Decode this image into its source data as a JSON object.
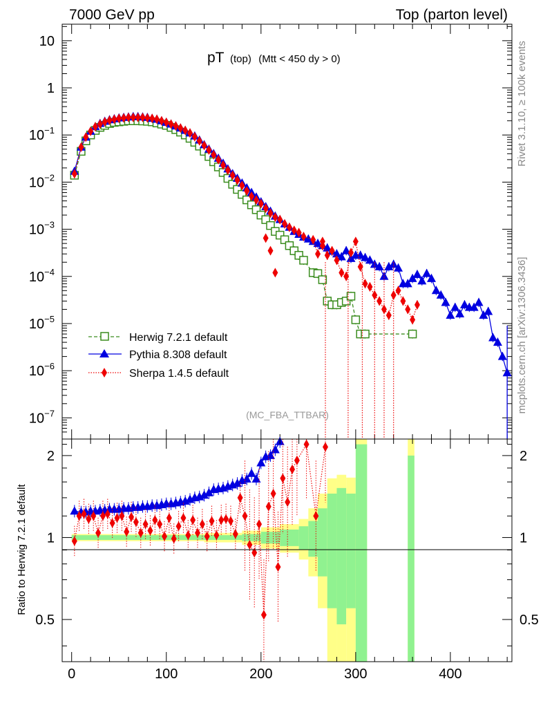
{
  "header": {
    "left": "7000 GeV pp",
    "right": "Top (parton level)"
  },
  "side": {
    "rivet": "Rivet 3.1.10, ≥ 100k events",
    "mcplots": "mcplots.cern.ch [arXiv:1306.3436]"
  },
  "analysis_label": "(MC_FBA_TTBAR)",
  "colors": {
    "herwig": "#3a8c1e",
    "pythia": "#0000e0",
    "sherpa": "#ee0000",
    "band_yellow": "#ffff88",
    "band_green": "#90f290"
  },
  "chart_data": [
    {
      "type": "line",
      "panel": "main",
      "title_main": "pT",
      "title_sub": "(top)",
      "title_cut": "(Mtt < 450 dy > 0)",
      "xlim": [
        -10,
        465
      ],
      "ylim_log10": [
        -7.45,
        1.35
      ],
      "ylog": true,
      "y_ticks": [
        {
          "label_base": "10",
          "label_exp": "",
          "value": 10
        },
        {
          "label_base": "1",
          "label_exp": "",
          "value": 1
        },
        {
          "label_base": "10",
          "label_exp": "−1",
          "value": 0.1
        },
        {
          "label_base": "10",
          "label_exp": "−2",
          "value": 0.01
        },
        {
          "label_base": "10",
          "label_exp": "−3",
          "value": 0.001
        },
        {
          "label_base": "10",
          "label_exp": "−4",
          "value": 0.0001
        },
        {
          "label_base": "10",
          "label_exp": "−5",
          "value": 1e-05
        },
        {
          "label_base": "10",
          "label_exp": "−6",
          "value": 1e-06
        },
        {
          "label_base": "10",
          "label_exp": "−7",
          "value": 1e-07
        }
      ],
      "legend_position": "bottom-left",
      "series": [
        {
          "name": "Herwig 7.2.1 default",
          "key": "herwig",
          "marker": "open-square",
          "linestyle": "dashed",
          "x": [
            3,
            10,
            15,
            20,
            25,
            30,
            35,
            40,
            45,
            50,
            55,
            60,
            65,
            70,
            75,
            80,
            85,
            90,
            95,
            100,
            105,
            110,
            115,
            120,
            125,
            130,
            135,
            140,
            145,
            150,
            155,
            160,
            165,
            170,
            175,
            180,
            185,
            190,
            195,
            200,
            205,
            210,
            215,
            220,
            225,
            230,
            235,
            240,
            245,
            255,
            260,
            265,
            270,
            275,
            280,
            285,
            290,
            295,
            300,
            305,
            310,
            360
          ],
          "y": [
            0.014,
            0.045,
            0.075,
            0.1,
            0.125,
            0.145,
            0.16,
            0.175,
            0.185,
            0.19,
            0.195,
            0.2,
            0.2,
            0.2,
            0.198,
            0.195,
            0.19,
            0.18,
            0.17,
            0.16,
            0.145,
            0.13,
            0.115,
            0.1,
            0.085,
            0.07,
            0.058,
            0.045,
            0.035,
            0.027,
            0.021,
            0.016,
            0.012,
            0.009,
            0.007,
            0.0055,
            0.0042,
            0.0033,
            0.0026,
            0.002,
            0.0016,
            0.0012,
            0.0009,
            0.00075,
            0.0006,
            0.00045,
            0.00035,
            0.00028,
            0.00022,
            0.00012,
            0.000115,
            8.5e-05,
            3e-05,
            2.5e-05,
            2.5e-05,
            2.8e-05,
            3e-05,
            3.8e-05,
            1.2e-05,
            6e-06,
            6e-06,
            6e-06
          ]
        },
        {
          "name": "Pythia 8.308 default",
          "key": "pythia",
          "marker": "filled-triangle",
          "linestyle": "solid",
          "x": [
            3,
            10,
            15,
            20,
            25,
            30,
            35,
            40,
            45,
            50,
            55,
            60,
            65,
            70,
            75,
            80,
            85,
            90,
            95,
            100,
            105,
            110,
            115,
            120,
            125,
            130,
            135,
            140,
            145,
            150,
            155,
            160,
            165,
            170,
            175,
            180,
            185,
            190,
            195,
            200,
            205,
            210,
            215,
            220,
            225,
            230,
            235,
            240,
            245,
            250,
            255,
            260,
            265,
            270,
            275,
            280,
            285,
            290,
            295,
            300,
            305,
            310,
            315,
            320,
            325,
            330,
            335,
            340,
            345,
            350,
            355,
            360,
            365,
            370,
            375,
            380,
            385,
            390,
            395,
            400,
            405,
            410,
            415,
            420,
            425,
            430,
            435,
            440,
            445,
            450,
            455,
            460
          ],
          "y": [
            0.017,
            0.055,
            0.09,
            0.12,
            0.15,
            0.175,
            0.195,
            0.21,
            0.22,
            0.23,
            0.235,
            0.24,
            0.245,
            0.245,
            0.24,
            0.235,
            0.225,
            0.215,
            0.2,
            0.185,
            0.17,
            0.155,
            0.14,
            0.125,
            0.11,
            0.095,
            0.078,
            0.062,
            0.05,
            0.04,
            0.032,
            0.025,
            0.019,
            0.015,
            0.012,
            0.0095,
            0.0075,
            0.006,
            0.0048,
            0.0038,
            0.003,
            0.0024,
            0.0019,
            0.0016,
            0.0013,
            0.0011,
            0.0009,
            0.00078,
            0.00068,
            0.00062,
            0.00055,
            0.0005,
            0.00045,
            0.0004,
            0.00034,
            0.0003,
            0.00026,
            0.00035,
            0.00024,
            0.00028,
            0.00028,
            0.00025,
            0.00022,
            0.00018,
            0.00016,
            0.0001,
            0.00016,
            0.00018,
            0.00015,
            7e-05,
            7e-05,
            9e-05,
            0.00011,
            8e-05,
            0.000115,
            9e-05,
            5e-05,
            4e-05,
            2.8e-05,
            1.5e-05,
            2.2e-05,
            1.6e-05,
            2.5e-05,
            2.2e-05,
            2.2e-05,
            2.8e-05,
            1.5e-05,
            1.8e-05,
            5e-06,
            4e-06,
            2e-06,
            9e-07
          ]
        },
        {
          "name": "Sherpa 1.4.5 default",
          "key": "sherpa",
          "marker": "filled-diamond",
          "linestyle": "dotted",
          "x": [
            3,
            10,
            15,
            20,
            25,
            30,
            35,
            40,
            45,
            50,
            55,
            60,
            65,
            70,
            75,
            80,
            85,
            90,
            95,
            100,
            105,
            110,
            115,
            120,
            125,
            130,
            135,
            140,
            145,
            150,
            155,
            160,
            165,
            170,
            175,
            180,
            185,
            190,
            195,
            200,
            205,
            210,
            215,
            220,
            225,
            230,
            235,
            240,
            245,
            255,
            260,
            265,
            270,
            275,
            280,
            285,
            290,
            295,
            300,
            305,
            310,
            315,
            320,
            325,
            330,
            335,
            340,
            345,
            350,
            355,
            360,
            365
          ],
          "y": [
            0.015,
            0.055,
            0.09,
            0.12,
            0.15,
            0.17,
            0.19,
            0.205,
            0.215,
            0.225,
            0.23,
            0.235,
            0.235,
            0.235,
            0.235,
            0.23,
            0.225,
            0.215,
            0.2,
            0.185,
            0.17,
            0.155,
            0.14,
            0.125,
            0.11,
            0.092,
            0.075,
            0.06,
            0.048,
            0.038,
            0.03,
            0.023,
            0.018,
            0.014,
            0.011,
            0.0085,
            0.0065,
            0.005,
            0.0042,
            0.0035,
            0.0028,
            0.0022,
            0.0018,
            0.0016,
            0.0013,
            0.0011,
            0.00095,
            0.00085,
            0.0007,
            0.0006,
            0.0003,
            0.00055,
            0.00028,
            0.00035,
            0.00022,
            0.00012,
            0.0001,
            0.00032,
            0.00055,
            0.00016,
            7e-05,
            6e-05,
            4e-05,
            3e-05,
            2e-05,
            1.5e-05,
            4e-05,
            5e-05,
            3e-05,
            2e-05,
            1.2e-05,
            2.5e-05
          ]
        }
      ],
      "sherpa_outliers": [
        {
          "x": 205,
          "y": 0.00065
        },
        {
          "x": 210,
          "y": 0.00035
        },
        {
          "x": 215,
          "y": 0.00012
        },
        {
          "x": 265,
          "y": 0.00045
        }
      ]
    },
    {
      "type": "line",
      "panel": "ratio",
      "ylabel": "Ratio to Herwig 7.2.1 default",
      "xlim": [
        -10,
        465
      ],
      "ylim": [
        0.35,
        2.3
      ],
      "y_ticks": [
        0.5,
        1,
        2
      ],
      "x_ticks": [
        0,
        100,
        200,
        300,
        400
      ],
      "reference": 1,
      "band_bins": [
        {
          "x0": 0,
          "x1": 140,
          "yellow": 0.03,
          "green": 0.02
        },
        {
          "x0": 140,
          "x1": 180,
          "yellow": 0.04,
          "green": 0.02
        },
        {
          "x0": 180,
          "x1": 200,
          "yellow": 0.06,
          "green": 0.03
        },
        {
          "x0": 200,
          "x1": 220,
          "yellow": 0.09,
          "green": 0.05
        },
        {
          "x0": 220,
          "x1": 240,
          "yellow": 0.12,
          "green": 0.07
        },
        {
          "x0": 240,
          "x1": 250,
          "yellow": 0.17,
          "green": 0.1
        },
        {
          "x0": 250,
          "x1": 260,
          "yellow": 0.28,
          "green": 0.15
        },
        {
          "x0": 260,
          "x1": 270,
          "yellow": 0.45,
          "green": 0.28
        },
        {
          "x0": 270,
          "x1": 280,
          "yellow": 0.65,
          "green": 0.45
        },
        {
          "x0": 280,
          "x1": 290,
          "yellow": 0.7,
          "green": 0.52
        },
        {
          "x0": 290,
          "x1": 300,
          "yellow": 0.66,
          "green": 0.45
        },
        {
          "x0": 300,
          "x1": 312,
          "yellow": 1.4,
          "green": 1.2
        },
        {
          "x0": 355,
          "x1": 362,
          "yellow": 1.4,
          "green": 1.0
        }
      ],
      "pythia_ratio": {
        "x": [
          3,
          10,
          15,
          20,
          25,
          30,
          35,
          40,
          45,
          50,
          55,
          60,
          65,
          70,
          75,
          80,
          85,
          90,
          95,
          100,
          105,
          110,
          115,
          120,
          125,
          130,
          135,
          140,
          145,
          150,
          155,
          160,
          165,
          170,
          175,
          180,
          185,
          190,
          195,
          200,
          205,
          210,
          215,
          220
        ],
        "y": [
          1.25,
          1.24,
          1.24,
          1.25,
          1.25,
          1.26,
          1.26,
          1.27,
          1.27,
          1.27,
          1.28,
          1.28,
          1.29,
          1.29,
          1.3,
          1.3,
          1.31,
          1.31,
          1.32,
          1.33,
          1.33,
          1.34,
          1.35,
          1.36,
          1.38,
          1.4,
          1.41,
          1.43,
          1.46,
          1.5,
          1.51,
          1.52,
          1.54,
          1.56,
          1.58,
          1.62,
          1.64,
          1.72,
          1.64,
          1.88,
          1.98,
          2.0,
          2.1,
          2.25
        ]
      },
      "sherpa_ratio": {
        "x": [
          3,
          8,
          13,
          18,
          23,
          28,
          33,
          38,
          43,
          48,
          53,
          58,
          63,
          68,
          73,
          78,
          83,
          88,
          93,
          98,
          103,
          108,
          113,
          118,
          123,
          128,
          133,
          138,
          143,
          148,
          153,
          158,
          163,
          168,
          173,
          178,
          183,
          188,
          193,
          198,
          203,
          208,
          213,
          218,
          223,
          228,
          233,
          238,
          248,
          258,
          268
        ],
        "y": [
          0.97,
          1.2,
          1.22,
          1.17,
          1.2,
          1.04,
          1.2,
          1.22,
          1.13,
          1.18,
          1.2,
          1.05,
          1.19,
          1.14,
          1.04,
          1.12,
          1.06,
          1.16,
          1.12,
          1.01,
          1.18,
          0.99,
          1.1,
          1.18,
          1.02,
          1.16,
          1.04,
          1.12,
          1.01,
          1.15,
          1.02,
          1.16,
          1.17,
          1.15,
          1.03,
          1.4,
          1.2,
          0.94,
          0.88,
          1.12,
          0.52,
          1.3,
          1.45,
          0.78,
          1.65,
          1.35,
          1.78,
          1.92,
          2.2,
          1.2,
          2.15
        ]
      }
    }
  ]
}
